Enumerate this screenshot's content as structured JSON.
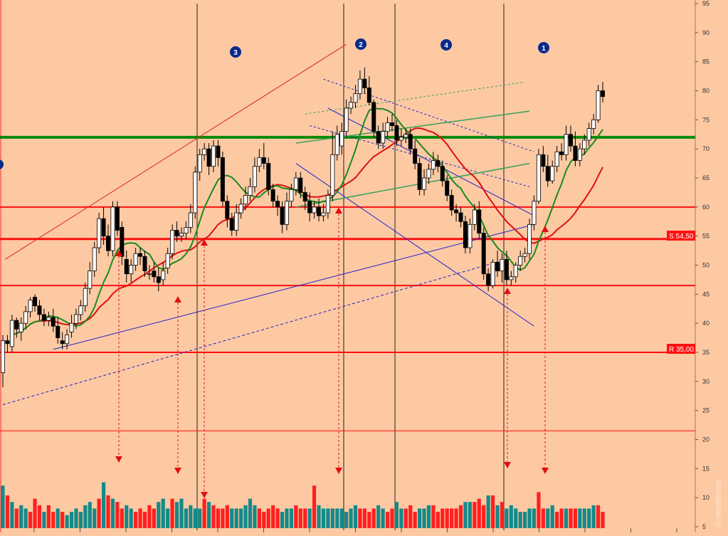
{
  "chart_data": {
    "type": "candlestick",
    "y_axis": {
      "ylim": [
        5,
        95
      ],
      "ticks": [
        5,
        10,
        15,
        20,
        25,
        30,
        35,
        40,
        45,
        50,
        55,
        60,
        65,
        70,
        75,
        80,
        85,
        90,
        95
      ],
      "tick_labels": [
        "5",
        "10",
        "15",
        "20",
        "25",
        "30",
        "35",
        "40",
        "45",
        "50",
        "55",
        "60",
        "65",
        "70",
        "75",
        "80",
        "85",
        "90",
        "95"
      ],
      "side": "right"
    },
    "grid": false,
    "colors": {
      "background": "#fdc9a3",
      "up_candle_fill": "#ffffff",
      "down_candle_fill": "#000000",
      "volume_up": "#148a8a",
      "volume_down": "#ff2020",
      "ma_fast": "#1a8a1a",
      "ma_slow": "#e01010",
      "support_resistance": "#ff1010",
      "key_level": "#0a8a0a",
      "trend_blue": "#2020cc",
      "trend_green": "#3aa05a",
      "phase_marker": "#0a2a8a"
    },
    "candles": {
      "x": [
        1,
        2,
        3,
        4,
        5,
        6,
        7,
        8,
        9,
        10,
        11,
        12,
        13,
        14,
        15,
        16,
        17,
        18,
        19,
        20,
        21,
        22,
        23,
        24,
        25,
        26,
        27,
        28,
        29,
        30,
        31,
        32,
        33,
        34,
        35,
        36,
        37,
        38,
        39,
        40,
        41,
        42,
        43,
        44,
        45,
        46,
        47,
        48,
        49,
        50,
        51,
        52,
        53,
        54,
        55,
        56,
        57,
        58,
        59,
        60,
        61,
        62,
        63,
        64,
        65,
        66,
        67,
        68,
        69,
        70,
        71,
        72,
        73,
        74,
        75,
        76,
        77,
        78,
        79,
        80,
        81,
        82,
        83,
        84,
        85,
        86,
        87,
        88,
        89,
        90,
        91,
        92,
        93,
        94,
        95,
        96,
        97,
        98,
        99,
        100,
        101,
        102,
        103,
        104,
        105,
        106,
        107,
        108,
        109,
        110,
        111,
        112,
        113,
        114,
        115,
        116,
        117,
        118,
        119,
        120,
        121,
        122,
        123,
        124,
        125,
        126,
        127,
        128,
        129,
        130,
        131,
        132
      ],
      "open": [
        31.5,
        37.0,
        36.0,
        40.5,
        38.5,
        40.0,
        42.0,
        44.5,
        43.0,
        41.5,
        40.5,
        41.0,
        39.5,
        37.0,
        36.5,
        38.5,
        40.0,
        41.5,
        43.0,
        46.0,
        49.0,
        53.0,
        58.0,
        55.0,
        52.5,
        60.0,
        56.5,
        51.0,
        48.5,
        50.0,
        52.0,
        51.5,
        48.5,
        49.0,
        48.0,
        47.5,
        49.5,
        52.0,
        56.0,
        55.0,
        55.5,
        56.5,
        59.0,
        66.0,
        69.0,
        70.0,
        67.0,
        70.5,
        68.5,
        61.0,
        58.0,
        56.0,
        59.0,
        60.5,
        62.0,
        63.5,
        67.0,
        68.5,
        67.5,
        63.0,
        61.0,
        60.0,
        57.0,
        61.0,
        63.0,
        65.0,
        62.5,
        61.0,
        59.0,
        60.0,
        58.5,
        59.0,
        62.0,
        69.0,
        70.5,
        73.0,
        77.0,
        78.0,
        79.5,
        82.0,
        80.5,
        78.0,
        73.0,
        71.0,
        73.0,
        74.5,
        74.0,
        71.5,
        72.0,
        72.5,
        70.0,
        67.5,
        63.0,
        65.0,
        66.5,
        68.0,
        67.0,
        64.5,
        62.0,
        59.5,
        59.0,
        57.5,
        53.0,
        57.0,
        59.5,
        55.5,
        48.5,
        46.5,
        50.5,
        49.0,
        51.0,
        47.5,
        48.0,
        50.0,
        51.5,
        52.0,
        57.0,
        61.0,
        69.0,
        67.0,
        64.5,
        67.0,
        69.5,
        69.0,
        72.5,
        70.5,
        68.0,
        70.0,
        71.5,
        73.5,
        75.0,
        80.0
      ],
      "close": [
        37.0,
        36.5,
        40.5,
        39.0,
        40.0,
        42.0,
        44.0,
        43.0,
        41.5,
        40.5,
        41.0,
        39.5,
        37.5,
        36.5,
        38.0,
        40.0,
        41.5,
        43.0,
        46.0,
        49.0,
        53.0,
        58.0,
        55.0,
        52.5,
        60.0,
        56.0,
        51.5,
        48.5,
        50.0,
        52.0,
        51.5,
        49.0,
        48.5,
        48.0,
        47.0,
        49.0,
        52.0,
        56.0,
        55.0,
        55.5,
        56.5,
        59.0,
        66.0,
        69.0,
        70.0,
        67.0,
        70.5,
        68.5,
        61.0,
        58.0,
        56.0,
        59.0,
        60.5,
        62.0,
        63.5,
        67.0,
        68.5,
        67.5,
        63.0,
        61.0,
        60.0,
        57.0,
        61.0,
        63.0,
        65.0,
        62.5,
        61.0,
        59.0,
        60.0,
        58.5,
        59.0,
        62.0,
        69.0,
        72.5,
        73.0,
        77.0,
        78.0,
        79.5,
        82.0,
        80.5,
        78.0,
        73.0,
        71.0,
        73.0,
        74.5,
        74.0,
        71.5,
        72.0,
        72.5,
        70.0,
        67.5,
        63.0,
        65.0,
        66.5,
        68.0,
        67.0,
        64.5,
        62.0,
        59.5,
        59.0,
        57.5,
        53.0,
        57.0,
        59.5,
        55.5,
        48.5,
        46.5,
        50.5,
        49.0,
        51.0,
        47.5,
        48.0,
        50.0,
        51.5,
        52.0,
        57.0,
        61.0,
        69.0,
        67.0,
        64.5,
        67.0,
        69.5,
        69.0,
        72.5,
        70.5,
        68.0,
        70.0,
        71.5,
        73.5,
        75.0,
        80.0,
        79.0
      ],
      "high": [
        38.0,
        38.0,
        41.5,
        41.0,
        41.0,
        43.0,
        44.5,
        45.0,
        44.0,
        42.5,
        42.0,
        42.5,
        41.0,
        38.5,
        39.0,
        41.5,
        42.5,
        44.0,
        47.0,
        50.5,
        54.0,
        59.0,
        60.0,
        57.0,
        61.0,
        61.0,
        57.5,
        52.5,
        51.0,
        53.0,
        53.0,
        52.5,
        50.0,
        50.5,
        49.5,
        50.5,
        53.0,
        57.0,
        57.5,
        56.5,
        57.5,
        60.5,
        67.0,
        70.0,
        71.0,
        71.0,
        71.5,
        71.5,
        69.5,
        62.0,
        59.0,
        60.5,
        61.5,
        63.5,
        65.0,
        68.5,
        70.0,
        71.0,
        68.5,
        64.0,
        62.0,
        61.0,
        62.5,
        64.0,
        66.0,
        66.0,
        63.5,
        62.5,
        61.0,
        61.5,
        60.5,
        63.0,
        73.0,
        74.0,
        74.5,
        78.5,
        79.0,
        81.0,
        83.5,
        84.0,
        82.5,
        78.5,
        74.0,
        74.5,
        75.5,
        76.0,
        75.0,
        73.5,
        73.5,
        73.5,
        71.5,
        68.5,
        66.5,
        67.5,
        69.5,
        69.0,
        68.0,
        65.5,
        63.0,
        60.5,
        60.0,
        58.5,
        58.0,
        60.5,
        61.0,
        56.5,
        49.5,
        51.0,
        52.5,
        52.0,
        52.5,
        49.0,
        50.5,
        52.5,
        53.0,
        58.0,
        62.0,
        70.0,
        70.5,
        69.0,
        68.0,
        70.5,
        71.0,
        74.0,
        74.0,
        73.0,
        71.0,
        72.5,
        74.5,
        76.0,
        81.0,
        81.5
      ],
      "low": [
        29.0,
        35.0,
        35.0,
        37.5,
        37.0,
        39.0,
        41.0,
        42.0,
        40.5,
        39.5,
        39.5,
        38.5,
        36.5,
        35.5,
        35.5,
        37.5,
        39.0,
        40.5,
        42.0,
        45.0,
        48.0,
        52.0,
        53.5,
        51.5,
        51.5,
        55.0,
        50.0,
        47.0,
        47.0,
        49.0,
        50.0,
        48.0,
        47.5,
        47.0,
        45.5,
        46.5,
        48.5,
        51.0,
        54.0,
        54.0,
        54.5,
        55.5,
        58.0,
        64.5,
        68.0,
        65.5,
        66.0,
        67.0,
        60.0,
        56.5,
        55.0,
        55.0,
        58.0,
        59.5,
        61.0,
        62.5,
        66.0,
        66.5,
        62.0,
        60.0,
        58.5,
        55.5,
        56.0,
        60.0,
        62.0,
        61.5,
        59.5,
        57.5,
        58.0,
        57.5,
        57.5,
        58.0,
        61.0,
        68.0,
        69.0,
        72.0,
        76.0,
        77.0,
        78.5,
        79.5,
        77.5,
        72.0,
        70.0,
        70.0,
        72.0,
        73.0,
        70.5,
        70.5,
        71.0,
        69.0,
        66.5,
        62.0,
        62.0,
        64.0,
        65.5,
        66.0,
        63.5,
        61.0,
        58.5,
        57.5,
        56.5,
        52.0,
        52.0,
        56.0,
        54.5,
        47.5,
        45.5,
        46.0,
        48.0,
        47.0,
        46.5,
        46.5,
        47.0,
        49.0,
        50.5,
        51.0,
        56.0,
        60.5,
        66.0,
        63.5,
        64.0,
        66.0,
        68.0,
        68.0,
        69.5,
        67.0,
        67.0,
        69.0,
        70.5,
        72.5,
        74.5,
        78.0
      ]
    },
    "volume": {
      "values": [
        13,
        10,
        8,
        6,
        7,
        6,
        5,
        9,
        7,
        5,
        7,
        5,
        6,
        5,
        4,
        5,
        6,
        5,
        7,
        8,
        6,
        9,
        14,
        10,
        9,
        8,
        6,
        7,
        6,
        5,
        6,
        5,
        7,
        6,
        8,
        9,
        6,
        9,
        8,
        9,
        6,
        7,
        6,
        6,
        9,
        8,
        7,
        6,
        6,
        7,
        6,
        6,
        6,
        7,
        9,
        7,
        6,
        5,
        6,
        7,
        6,
        5,
        6,
        6,
        7,
        6,
        6,
        6,
        13,
        7,
        6,
        6,
        6,
        6,
        6,
        5,
        6,
        7,
        6,
        6,
        5,
        6,
        7,
        6,
        5,
        6,
        8,
        6,
        6,
        7,
        5,
        6,
        6,
        7,
        7,
        5,
        6,
        6,
        6,
        6,
        7,
        8,
        8,
        8,
        9,
        7,
        10,
        10,
        7,
        8,
        6,
        7,
        6,
        5,
        5,
        6,
        6,
        11,
        6,
        6,
        7,
        5,
        6,
        6,
        6,
        6,
        6,
        6,
        6,
        7,
        7,
        5
      ],
      "up": [
        true,
        false,
        true,
        false,
        true,
        true,
        false,
        false,
        false,
        true,
        false,
        false,
        true,
        false,
        true,
        true,
        true,
        true,
        true,
        true,
        true,
        false,
        true,
        false,
        true,
        false,
        false,
        true,
        true,
        false,
        false,
        false,
        false,
        false,
        true,
        true,
        true,
        false,
        true,
        true,
        true,
        true,
        true,
        true,
        false,
        true,
        false,
        false,
        false,
        false,
        true,
        true,
        true,
        true,
        true,
        true,
        false,
        false,
        false,
        false,
        false,
        true,
        true,
        true,
        false,
        false,
        false,
        true,
        false,
        true,
        true,
        true,
        true,
        true,
        true,
        true,
        true,
        true,
        false,
        false,
        false,
        false,
        true,
        true,
        false,
        false,
        true,
        true,
        false,
        false,
        false,
        true,
        true,
        true,
        false,
        false,
        false,
        false,
        false,
        false,
        false,
        true,
        true,
        false,
        false,
        false,
        true,
        false,
        true,
        false,
        true,
        true,
        true,
        true,
        true,
        true,
        true,
        false,
        false,
        true,
        true,
        false,
        false,
        true,
        false,
        false,
        true,
        true,
        true,
        true,
        false,
        false
      ]
    },
    "horizontal_lines": {
      "support_54_50": {
        "y": 54.5,
        "label": "S 54,50"
      },
      "resistance_35_00": {
        "y": 35.0,
        "label": "R 35,00"
      },
      "green_72": {
        "y": 72
      },
      "red_60": {
        "y": 60
      },
      "red_46_5": {
        "y": 46.5
      },
      "red_21_5": {
        "y": 21.5
      }
    },
    "phase_markers": [
      "3",
      "2",
      "4",
      "1"
    ],
    "watermark": "© Wealthintel"
  }
}
